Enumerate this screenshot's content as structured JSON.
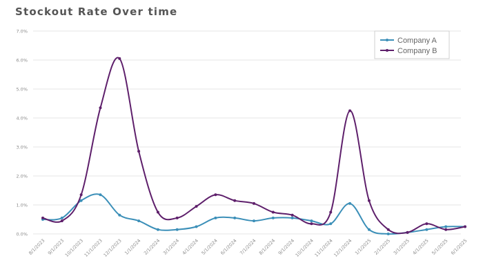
{
  "chart_data": {
    "type": "line",
    "title": "Stockout Rate Over time",
    "xlabel": "",
    "ylabel": "",
    "x": [
      "8/1/2023",
      "9/1/2023",
      "10/1/2023",
      "11/1/2023",
      "12/1/2023",
      "1/1/2024",
      "2/1/2024",
      "3/1/2024",
      "4/1/2024",
      "5/1/2024",
      "6/1/2024",
      "7/1/2024",
      "8/1/2024",
      "9/1/2024",
      "10/1/2024",
      "11/1/2024",
      "12/1/2024",
      "1/1/2025",
      "2/1/2025",
      "3/1/2025",
      "4/1/2025",
      "5/1/2025",
      "6/1/2025"
    ],
    "ylim": [
      0,
      7.0
    ],
    "yticks": [
      "0.0%",
      "1.0%",
      "2.0%",
      "3.0%",
      "4.0%",
      "5.0%",
      "6.0%",
      "7.0%"
    ],
    "grid": "horizontal",
    "legend_position": "top-right",
    "series": [
      {
        "name": "Company A",
        "color": "#3b8fb8",
        "values": [
          0.5,
          0.55,
          1.15,
          1.35,
          0.65,
          0.45,
          0.15,
          0.15,
          0.25,
          0.55,
          0.55,
          0.45,
          0.55,
          0.55,
          0.45,
          0.35,
          1.05,
          0.15,
          0.0,
          0.05,
          0.15,
          0.25,
          0.25
        ]
      },
      {
        "name": "Company B",
        "color": "#5e1f6b",
        "values": [
          0.55,
          0.45,
          1.35,
          4.35,
          6.05,
          2.85,
          0.75,
          0.55,
          0.95,
          1.35,
          1.15,
          1.05,
          0.75,
          0.65,
          0.35,
          0.75,
          4.25,
          1.15,
          0.15,
          0.05,
          0.35,
          0.15,
          0.25
        ]
      }
    ]
  }
}
